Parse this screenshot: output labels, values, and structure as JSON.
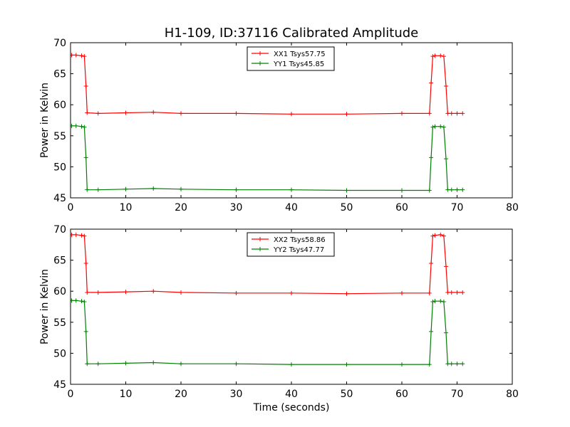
{
  "figure": {
    "title": "H1-109, ID:37116 Calibrated Amplitude"
  },
  "chart_data": [
    {
      "type": "line",
      "title": "H1-109, ID:37116 Calibrated Amplitude",
      "xlabel": "",
      "ylabel": "Power in Kelvin",
      "xlim": [
        0,
        80
      ],
      "ylim": [
        45,
        70
      ],
      "xticks": [
        0,
        10,
        20,
        30,
        40,
        50,
        60,
        70,
        80
      ],
      "yticks": [
        45,
        50,
        55,
        60,
        65,
        70
      ],
      "grid": false,
      "legend_position": "top-center",
      "series": [
        {
          "name": "XX1 Tsys57.75",
          "color": "#ff0000",
          "x": [
            0.2,
            1,
            2,
            2.5,
            2.8,
            3,
            5,
            10,
            15,
            20,
            30,
            40,
            50,
            60,
            65,
            65.3,
            65.6,
            66,
            67,
            67.6,
            68,
            68.3,
            69,
            70,
            71
          ],
          "y": [
            68.0,
            68.0,
            67.9,
            67.8,
            63.0,
            58.7,
            58.6,
            58.7,
            58.8,
            58.6,
            58.6,
            58.5,
            58.5,
            58.6,
            58.6,
            63.5,
            67.8,
            67.9,
            67.9,
            67.8,
            63.0,
            58.6,
            58.6,
            58.6,
            58.6
          ]
        },
        {
          "name": "YY1 Tsys45.85",
          "color": "#008000",
          "x": [
            0.2,
            1,
            2,
            2.5,
            2.8,
            3,
            5,
            10,
            15,
            20,
            30,
            40,
            50,
            60,
            65,
            65.3,
            65.6,
            66,
            67,
            67.6,
            68,
            68.3,
            69,
            70,
            71
          ],
          "y": [
            56.6,
            56.6,
            56.5,
            56.4,
            51.5,
            46.3,
            46.3,
            46.4,
            46.5,
            46.4,
            46.3,
            46.3,
            46.2,
            46.2,
            46.2,
            51.5,
            56.4,
            56.5,
            56.5,
            56.4,
            51.3,
            46.3,
            46.3,
            46.3,
            46.3
          ]
        }
      ]
    },
    {
      "type": "line",
      "title": "",
      "xlabel": "Time (seconds)",
      "ylabel": "Power in Kelvin",
      "xlim": [
        0,
        80
      ],
      "ylim": [
        45,
        70
      ],
      "xticks": [
        0,
        10,
        20,
        30,
        40,
        50,
        60,
        70,
        80
      ],
      "yticks": [
        45,
        50,
        55,
        60,
        65,
        70
      ],
      "grid": false,
      "legend_position": "top-center",
      "series": [
        {
          "name": "XX2 Tsys58.86",
          "color": "#ff0000",
          "x": [
            0.2,
            1,
            2,
            2.5,
            2.8,
            3,
            5,
            10,
            15,
            20,
            30,
            40,
            50,
            60,
            65,
            65.3,
            65.6,
            66,
            67,
            67.6,
            68,
            68.3,
            69,
            70,
            71
          ],
          "y": [
            69.1,
            69.1,
            69.0,
            68.9,
            64.5,
            59.8,
            59.8,
            59.9,
            60.0,
            59.8,
            59.7,
            59.7,
            59.6,
            59.7,
            59.7,
            64.5,
            68.9,
            69.0,
            69.1,
            68.9,
            64.0,
            59.8,
            59.8,
            59.8,
            59.8
          ]
        },
        {
          "name": "YY2 Tsys47.77",
          "color": "#008000",
          "x": [
            0.2,
            1,
            2,
            2.5,
            2.8,
            3,
            5,
            10,
            15,
            20,
            30,
            40,
            50,
            60,
            65,
            65.3,
            65.6,
            66,
            67,
            67.6,
            68,
            68.3,
            69,
            70,
            71
          ],
          "y": [
            58.5,
            58.5,
            58.4,
            58.3,
            53.5,
            48.3,
            48.3,
            48.4,
            48.5,
            48.3,
            48.3,
            48.2,
            48.2,
            48.2,
            48.2,
            53.5,
            58.3,
            58.4,
            58.4,
            58.3,
            53.3,
            48.3,
            48.3,
            48.3,
            48.3
          ]
        }
      ]
    }
  ]
}
